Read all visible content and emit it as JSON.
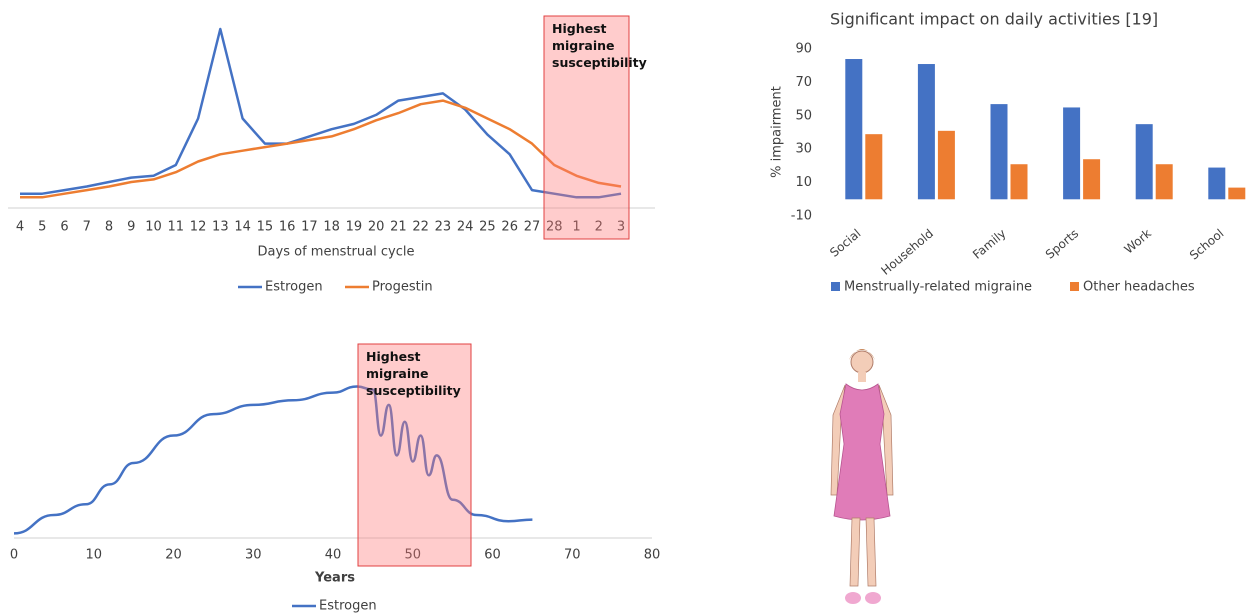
{
  "chart_data": [
    {
      "type": "line",
      "xlabel": "Days of menstrual cycle",
      "categories": [
        "4",
        "5",
        "6",
        "7",
        "8",
        "9",
        "10",
        "11",
        "12",
        "13",
        "14",
        "15",
        "16",
        "17",
        "18",
        "19",
        "20",
        "21",
        "22",
        "23",
        "24",
        "25",
        "26",
        "27",
        "28",
        "1",
        "2",
        "3"
      ],
      "series": [
        {
          "name": "Estrogen",
          "color": "#4472c4",
          "values": [
            8,
            8,
            10,
            12,
            14.5,
            17,
            18,
            24,
            50,
            100,
            50,
            36,
            36,
            40,
            44,
            47,
            52,
            60,
            62,
            64,
            55,
            41,
            30,
            10,
            8,
            6,
            6,
            8
          ]
        },
        {
          "name": "Progestin",
          "color": "#ed7d31",
          "values": [
            6,
            6,
            8,
            10,
            12,
            14.5,
            16,
            20,
            26,
            30,
            32,
            34,
            36,
            38,
            40,
            44,
            49,
            53,
            58,
            60,
            56,
            50,
            44,
            36,
            24,
            18,
            14,
            12
          ]
        }
      ],
      "ylim": [
        0,
        100
      ],
      "annotation": "Highest migraine susceptibility",
      "legend": "bottom"
    },
    {
      "type": "bar",
      "title": "Significant impact on daily activities [19]",
      "ylabel": "% impairment",
      "categories": [
        "Social",
        "Household",
        "Family",
        "Sports",
        "Work",
        "School"
      ],
      "series": [
        {
          "name": "Menstrually-related migraine",
          "color": "#4472c4",
          "values": [
            84,
            81,
            57,
            55,
            45,
            19
          ]
        },
        {
          "name": "Other headaches",
          "color": "#ed7d31",
          "values": [
            39,
            41,
            21,
            24,
            21,
            7
          ]
        }
      ],
      "ylim": [
        -10,
        90
      ],
      "yticks": [
        -10,
        10,
        30,
        50,
        70,
        90
      ],
      "legend": "bottom"
    },
    {
      "type": "line",
      "xlabel": "Years",
      "x": [
        0,
        5,
        9,
        12,
        15,
        20,
        25,
        30,
        35,
        40,
        43,
        45,
        46,
        47,
        48,
        49,
        50,
        51,
        52,
        53,
        55,
        58,
        62,
        65
      ],
      "series": [
        {
          "name": "Estrogen",
          "color": "#4472c4",
          "values": [
            3,
            15,
            22,
            35,
            49,
            67,
            81,
            87,
            90,
            95,
            99,
            97,
            67,
            87,
            54,
            76,
            50,
            67,
            41,
            54,
            25,
            15,
            11,
            12
          ]
        }
      ],
      "xlim": [
        0,
        80
      ],
      "xticks": [
        0,
        10,
        20,
        30,
        40,
        50,
        60,
        70,
        80
      ],
      "ylim": [
        0,
        100
      ],
      "annotation": "Highest migraine susceptibility",
      "legend": "bottom"
    }
  ]
}
